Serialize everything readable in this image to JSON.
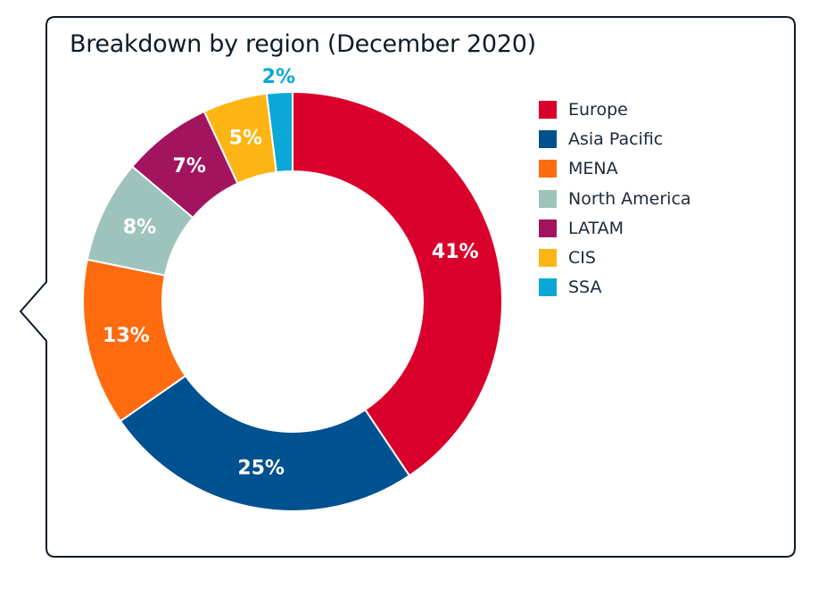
{
  "chart_data": {
    "type": "pie",
    "title": "Breakdown by region (December 2020)",
    "legend_position": "right",
    "donut": true,
    "series": [
      {
        "name": "Europe",
        "value": 41,
        "label": "41%",
        "color": "#d9002b",
        "label_color": "#ffffff"
      },
      {
        "name": "Asia Pacific",
        "value": 25,
        "label": "25%",
        "color": "#00518f",
        "label_color": "#ffffff"
      },
      {
        "name": "MENA",
        "value": 13,
        "label": "13%",
        "color": "#ff6b0f",
        "label_color": "#ffffff"
      },
      {
        "name": "North America",
        "value": 8,
        "label": "8%",
        "color": "#9ec3bd",
        "label_color": "#ffffff"
      },
      {
        "name": "LATAM",
        "value": 7,
        "label": "7%",
        "color": "#a3145f",
        "label_color": "#ffffff"
      },
      {
        "name": "CIS",
        "value": 5,
        "label": "5%",
        "color": "#fdb515",
        "label_color": "#ffffff"
      },
      {
        "name": "SSA",
        "value": 2,
        "label": "2%",
        "color": "#0aa8d6",
        "label_color": "#0aa8d6"
      }
    ]
  }
}
